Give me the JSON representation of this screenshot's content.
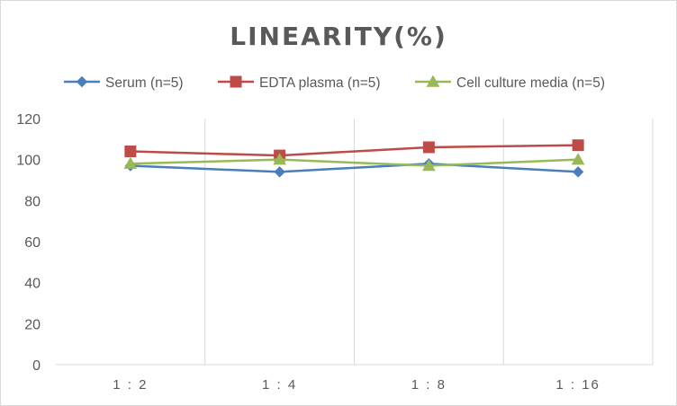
{
  "chart_data": {
    "type": "line",
    "title": "LINEARITY(%)",
    "xlabel": "",
    "ylabel": "",
    "categories": [
      "1:2",
      "1:4",
      "1:8",
      "1:16"
    ],
    "ylim": [
      0,
      120
    ],
    "yticks": [
      0,
      20,
      40,
      60,
      80,
      100,
      120
    ],
    "grid": "vertical",
    "legend_position": "top",
    "series": [
      {
        "name": "Serum (n=5)",
        "values": [
          97,
          94,
          98,
          94
        ],
        "color": "#4a7ebb",
        "marker": "diamond"
      },
      {
        "name": "EDTA plasma (n=5)",
        "values": [
          104,
          102,
          106,
          107
        ],
        "color": "#be4b48",
        "marker": "square"
      },
      {
        "name": "Cell culture media (n=5)",
        "values": [
          98,
          100,
          97,
          100
        ],
        "color": "#98b954",
        "marker": "triangle"
      }
    ]
  }
}
